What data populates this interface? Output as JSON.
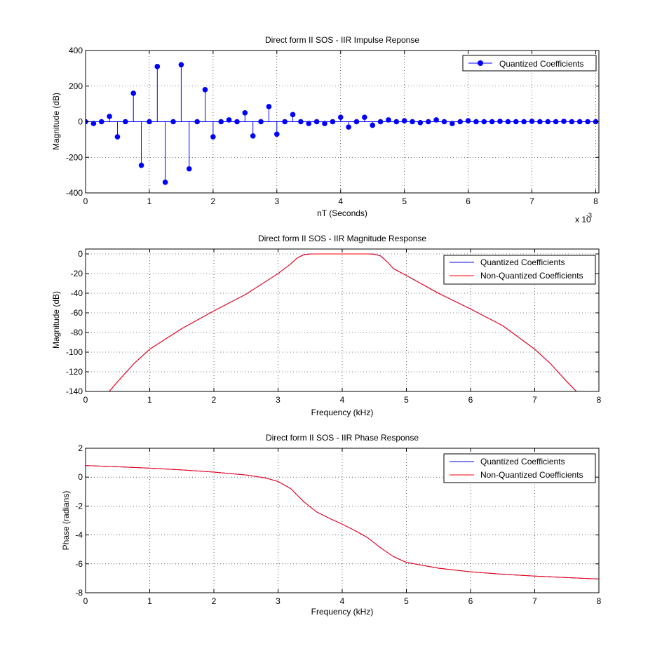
{
  "chart_data": [
    {
      "type": "stem",
      "title": "Direct form II SOS - IIR Impulse Reponse",
      "xlabel": "nT (Seconds)",
      "ylabel": "Magnitude (dB)",
      "x_exponent_label": "x 10",
      "x_exponent": "-3",
      "xlim": [
        0,
        8.05
      ],
      "ylim": [
        -400,
        400
      ],
      "xticks": [
        0,
        1,
        2,
        3,
        4,
        5,
        6,
        7,
        8
      ],
      "yticks": [
        -400,
        -200,
        0,
        200,
        400
      ],
      "grid": true,
      "legend": {
        "position": "top-right",
        "entries": [
          "Quantized Coefficients"
        ]
      },
      "colors": {
        "series": "#0000ff"
      },
      "series": [
        {
          "name": "Quantized Coefficients",
          "x_step": 0.125,
          "values": [
            0,
            -10,
            0,
            30,
            -85,
            0,
            160,
            -245,
            0,
            310,
            -340,
            0,
            320,
            -265,
            0,
            180,
            -85,
            0,
            10,
            0,
            50,
            -80,
            0,
            85,
            -70,
            0,
            40,
            0,
            -10,
            0,
            -10,
            0,
            25,
            -30,
            0,
            25,
            -20,
            0,
            10,
            0,
            5,
            0,
            -5,
            0,
            10,
            0,
            -10,
            0,
            5,
            0,
            0,
            0,
            2,
            0,
            0,
            0,
            2,
            0,
            0,
            0,
            2,
            0,
            0,
            0,
            0,
            0,
            0,
            0,
            0,
            0,
            0,
            0,
            0,
            0,
            0,
            0,
            0,
            0,
            0,
            0,
            0,
            0,
            0,
            0,
            0,
            0,
            0,
            0,
            0,
            0,
            0,
            0,
            0,
            0,
            0,
            0,
            0,
            0,
            0,
            0,
            0,
            0,
            0,
            0,
            0,
            0,
            0,
            0,
            0,
            0,
            0,
            0,
            0,
            0,
            0,
            0,
            0,
            0,
            0,
            0,
            0,
            0,
            0,
            0,
            0,
            0,
            0,
            0,
            0,
            0,
            0,
            0,
            0,
            0,
            0,
            0,
            0,
            0,
            0,
            0,
            0,
            0,
            0,
            0,
            0,
            0,
            0,
            0,
            0,
            0,
            0,
            0,
            0,
            0,
            0,
            0,
            0,
            0,
            0,
            0,
            0,
            0,
            0,
            0,
            0,
            0,
            0,
            0,
            0,
            0,
            0,
            0,
            0,
            0,
            0,
            0,
            0,
            0,
            0,
            0,
            0,
            0,
            0,
            0,
            0,
            0,
            0,
            0,
            0,
            0,
            0,
            0,
            0,
            0,
            0,
            0,
            0,
            0,
            0,
            0,
            0,
            0,
            0,
            0
          ]
        }
      ]
    },
    {
      "type": "line",
      "title": "Direct form II SOS - IIR Magnitude Response",
      "xlabel": "Frequency (kHz)",
      "ylabel": "Magnitude (dB)",
      "xlim": [
        0,
        8
      ],
      "ylim": [
        -140,
        5
      ],
      "xticks": [
        0,
        1,
        2,
        3,
        4,
        5,
        6,
        7,
        8
      ],
      "yticks": [
        -140,
        -120,
        -100,
        -80,
        -60,
        -40,
        -20,
        0
      ],
      "grid": true,
      "legend": {
        "position": "top-right",
        "entries": [
          "Quantized Coefficients",
          "Non-Quantized Coefficients"
        ]
      },
      "colors": {
        "quantized": "#0000ff",
        "nonquantized": "#ff0000"
      },
      "series": [
        {
          "name": "Quantized Coefficients",
          "x": [
            0.37,
            0.5,
            0.75,
            1.0,
            1.5,
            2.0,
            2.5,
            3.0,
            3.2,
            3.3,
            3.4,
            3.5,
            3.6,
            4.0,
            4.4,
            4.5,
            4.6,
            4.7,
            4.8,
            5.0,
            5.5,
            6.0,
            6.5,
            7.0,
            7.25,
            7.5,
            7.65
          ],
          "y": [
            -140,
            -130,
            -112,
            -97,
            -76,
            -58,
            -41,
            -20,
            -10,
            -4,
            -0.8,
            0,
            0,
            0,
            0,
            -0.2,
            -2,
            -8,
            -15,
            -22,
            -40,
            -56,
            -73,
            -97,
            -112,
            -130,
            -140
          ]
        },
        {
          "name": "Non-Quantized Coefficients",
          "x": [
            0.37,
            0.5,
            0.75,
            1.0,
            1.5,
            2.0,
            2.5,
            3.0,
            3.2,
            3.3,
            3.4,
            3.5,
            3.6,
            4.0,
            4.4,
            4.5,
            4.6,
            4.7,
            4.8,
            5.0,
            5.5,
            6.0,
            6.5,
            7.0,
            7.25,
            7.5,
            7.65
          ],
          "y": [
            -140,
            -130,
            -112,
            -97,
            -76,
            -58,
            -41,
            -20,
            -10,
            -4,
            -1,
            -0.1,
            0,
            0,
            0,
            -0.3,
            -2.2,
            -8,
            -15,
            -22,
            -40,
            -56,
            -73,
            -97,
            -112,
            -130,
            -140
          ]
        }
      ]
    },
    {
      "type": "line",
      "title": "Direct form II SOS - IIR Phase Response",
      "xlabel": "Frequency (kHz)",
      "ylabel": "Phase (radians)",
      "xlim": [
        0,
        8
      ],
      "ylim": [
        -8,
        2
      ],
      "xticks": [
        0,
        1,
        2,
        3,
        4,
        5,
        6,
        7,
        8
      ],
      "yticks": [
        -8,
        -6,
        -4,
        -2,
        0,
        2
      ],
      "grid": true,
      "legend": {
        "position": "top-right",
        "entries": [
          "Quantized Coefficients",
          "Non-Quantized Coefficients"
        ]
      },
      "colors": {
        "quantized": "#0000ff",
        "nonquantized": "#ff0000"
      },
      "series": [
        {
          "name": "Quantized Coefficients",
          "x": [
            0,
            0.5,
            1.0,
            1.5,
            2.0,
            2.5,
            2.8,
            3.0,
            3.2,
            3.4,
            3.6,
            3.8,
            4.0,
            4.2,
            4.4,
            4.6,
            4.8,
            5.0,
            5.5,
            6.0,
            6.5,
            7.0,
            7.5,
            8.0
          ],
          "y": [
            0.8,
            0.72,
            0.62,
            0.5,
            0.35,
            0.15,
            -0.05,
            -0.3,
            -0.8,
            -1.7,
            -2.4,
            -2.85,
            -3.25,
            -3.7,
            -4.2,
            -4.9,
            -5.5,
            -5.9,
            -6.3,
            -6.55,
            -6.72,
            -6.85,
            -6.95,
            -7.05
          ]
        },
        {
          "name": "Non-Quantized Coefficients",
          "x": [
            0,
            0.5,
            1.0,
            1.5,
            2.0,
            2.5,
            2.8,
            3.0,
            3.2,
            3.4,
            3.6,
            3.8,
            4.0,
            4.2,
            4.4,
            4.6,
            4.8,
            5.0,
            5.5,
            6.0,
            6.5,
            7.0,
            7.5,
            8.0
          ],
          "y": [
            0.8,
            0.72,
            0.62,
            0.5,
            0.35,
            0.15,
            -0.05,
            -0.3,
            -0.8,
            -1.7,
            -2.4,
            -2.85,
            -3.25,
            -3.7,
            -4.2,
            -4.9,
            -5.5,
            -5.9,
            -6.3,
            -6.55,
            -6.72,
            -6.85,
            -6.95,
            -7.05
          ]
        }
      ]
    }
  ]
}
